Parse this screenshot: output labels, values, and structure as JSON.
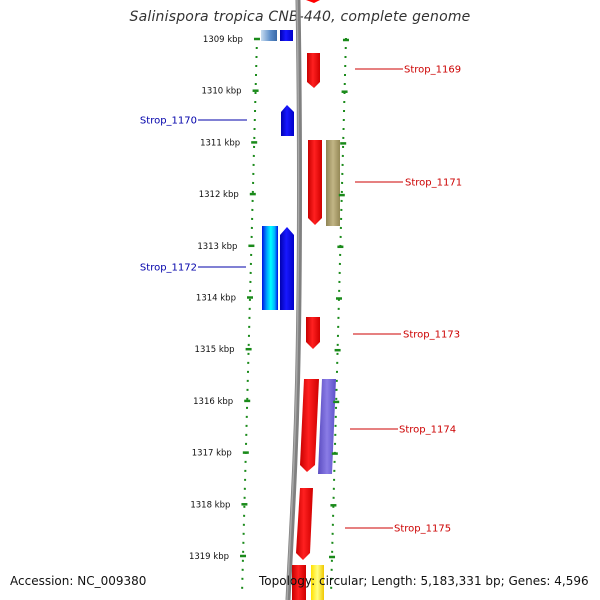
{
  "title": "Salinispora tropica CNB-440, complete genome",
  "accession": "Accession: NC_009380",
  "topology": "Topology: circular; Length: 5,183,331 bp; Genes: 4,596",
  "colors": {
    "backbone": "#808080",
    "forward_gene": "#ff0000",
    "reverse_gene": "#0000ff",
    "forward_label": "#cc0000",
    "reverse_label": "#0000aa",
    "tick": "#1a8a1a"
  },
  "scale": {
    "ticks": [
      {
        "label": "1309 kbp"
      },
      {
        "label": "1310 kbp"
      },
      {
        "label": "1311 kbp"
      },
      {
        "label": "1312 kbp"
      },
      {
        "label": "1313 kbp"
      },
      {
        "label": "1314 kbp"
      },
      {
        "label": "1315 kbp"
      },
      {
        "label": "1316 kbp"
      },
      {
        "label": "1317 kbp"
      },
      {
        "label": "1318 kbp"
      },
      {
        "label": "1319 kbp"
      }
    ]
  },
  "genes": [
    {
      "label": "Strop_1169",
      "strand": "forward"
    },
    {
      "label": "Strop_1170",
      "strand": "reverse"
    },
    {
      "label": "Strop_1171",
      "strand": "forward"
    },
    {
      "label": "Strop_1172",
      "strand": "reverse"
    },
    {
      "label": "Strop_1173",
      "strand": "forward"
    },
    {
      "label": "Strop_1174",
      "strand": "forward"
    },
    {
      "label": "Strop_1175",
      "strand": "forward"
    }
  ]
}
